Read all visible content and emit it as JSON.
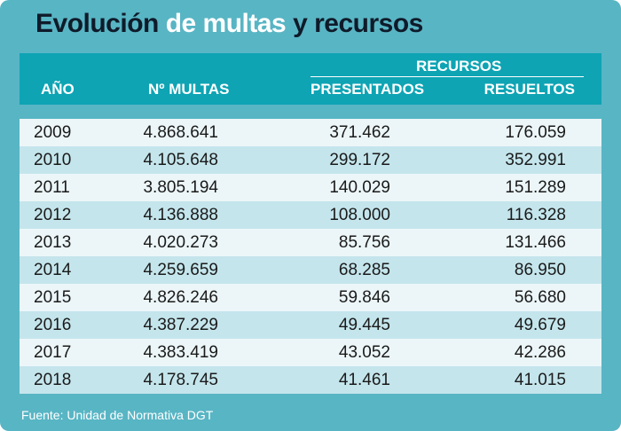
{
  "title": {
    "part1": "Evolución",
    "part2": "de multas",
    "part3": "y recursos"
  },
  "headers": {
    "year": "AÑO",
    "multas": "Nº MULTAS",
    "recursos": "RECURSOS",
    "presentados": "PRESENTADOS",
    "resueltos": "RESUELTOS"
  },
  "rows": [
    {
      "year": "2009",
      "multas": "4.868.641",
      "presentados": "371.462",
      "resueltos": "176.059"
    },
    {
      "year": "2010",
      "multas": "4.105.648",
      "presentados": "299.172",
      "resueltos": "352.991"
    },
    {
      "year": "2011",
      "multas": "3.805.194",
      "presentados": "140.029",
      "resueltos": "151.289"
    },
    {
      "year": "2012",
      "multas": "4.136.888",
      "presentados": "108.000",
      "resueltos": "116.328"
    },
    {
      "year": "2013",
      "multas": "4.020.273",
      "presentados": "85.756",
      "resueltos": "131.466"
    },
    {
      "year": "2014",
      "multas": "4.259.659",
      "presentados": "68.285",
      "resueltos": "86.950"
    },
    {
      "year": "2015",
      "multas": "4.826.246",
      "presentados": "59.846",
      "resueltos": "56.680"
    },
    {
      "year": "2016",
      "multas": "4.387.229",
      "presentados": "49.445",
      "resueltos": "49.679"
    },
    {
      "year": "2017",
      "multas": "4.383.419",
      "presentados": "43.052",
      "resueltos": "42.286"
    },
    {
      "year": "2018",
      "multas": "4.178.745",
      "presentados": "41.461",
      "resueltos": "41.015"
    }
  ],
  "source": "Fuente: Unidad de Normativa  DGT",
  "colors": {
    "background": "#58b5c4",
    "header": "#0ea4b4",
    "row_light": "#ecf6f8",
    "row_dark": "#c4e5ec",
    "title_dark": "#0f1b2a"
  }
}
